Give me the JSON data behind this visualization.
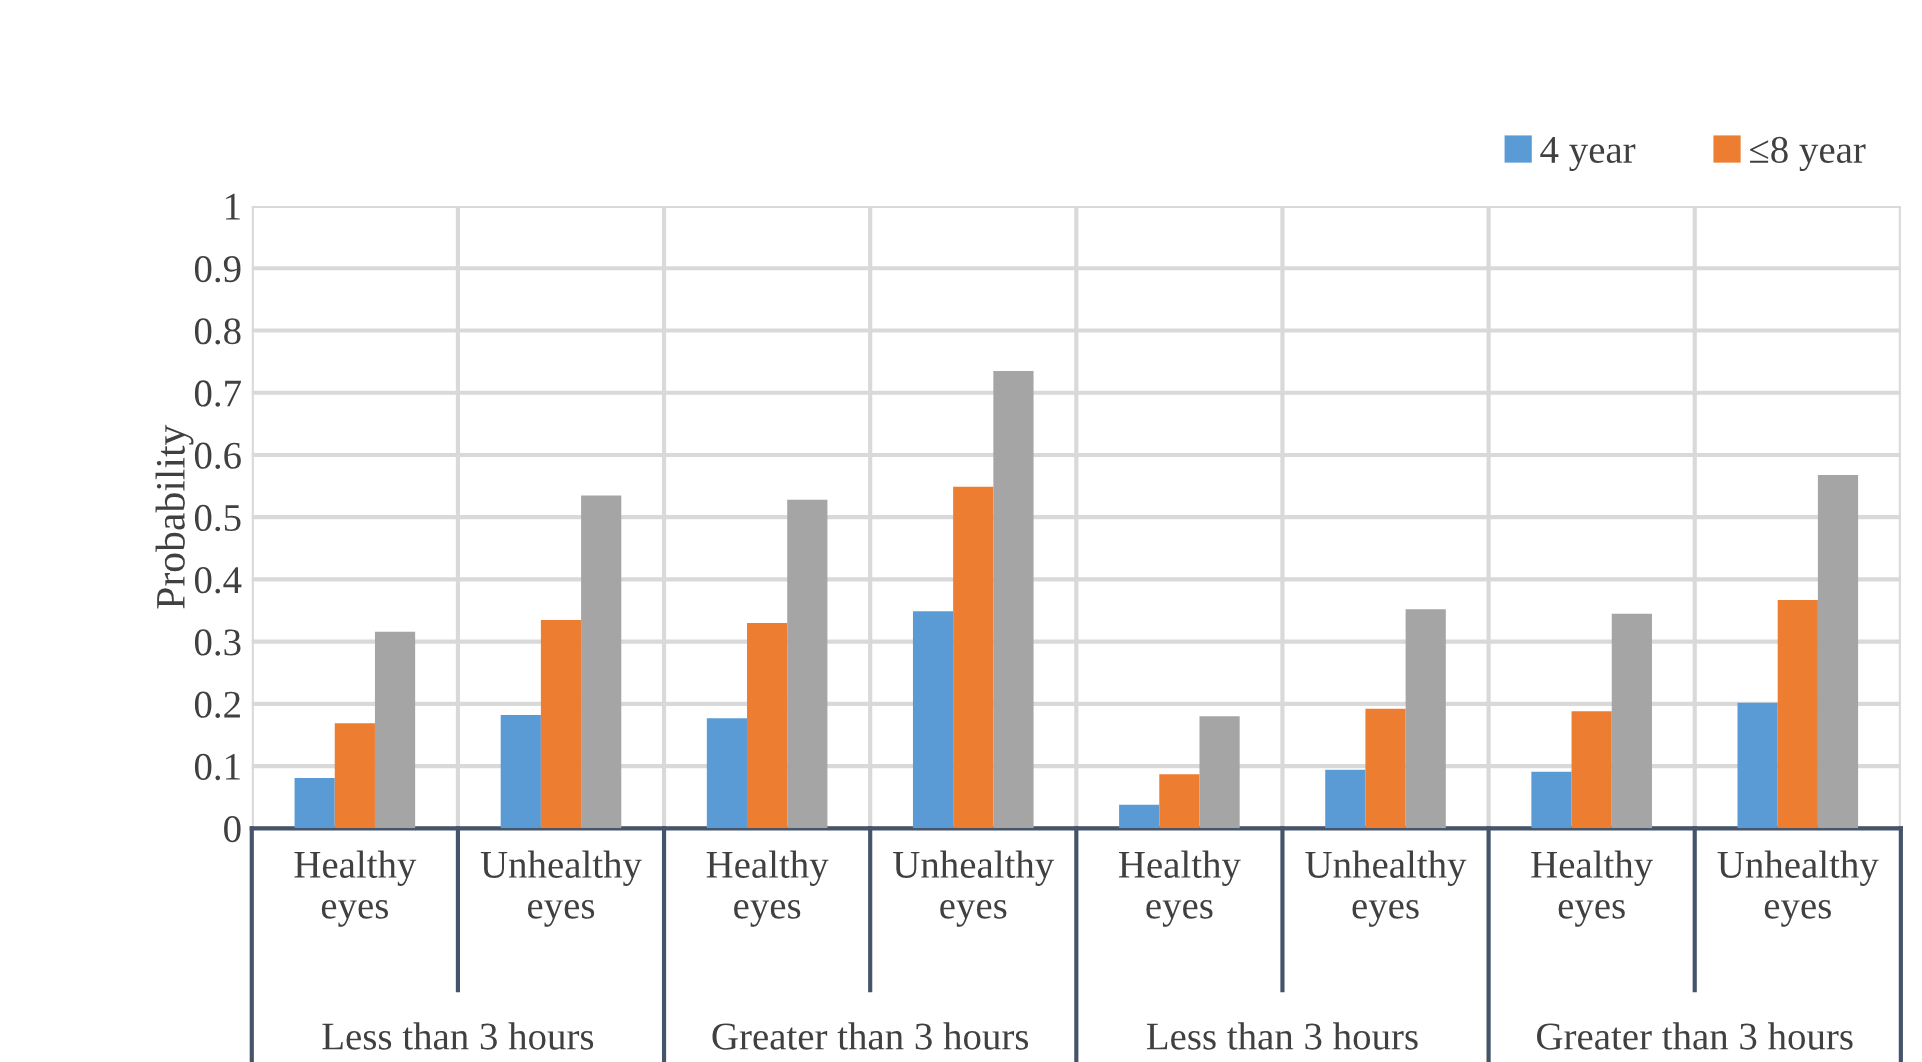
{
  "chart_data": {
    "type": "bar",
    "ylabel": "Probability",
    "categories": [
      "Healthy\neyes",
      "Unhealthy\neyes",
      "Healthy\neyes",
      "Unhealthy\neyes",
      "Healthy\neyes",
      "Unhealthy\neyes",
      "Healthy\neyes",
      "Unhealthy\neyes"
    ],
    "series": [
      {
        "name": "4 year",
        "color": "#5b9bd5",
        "values": [
          0.081,
          0.182,
          0.177,
          0.349,
          0.038,
          0.094,
          0.091,
          0.202
        ]
      },
      {
        "name": "≤8 year",
        "color": "#ed7d31",
        "values": [
          0.169,
          0.335,
          0.33,
          0.549,
          0.087,
          0.192,
          0.188,
          0.367
        ]
      },
      {
        "color": "#a5a5a5",
        "values": [
          0.316,
          0.535,
          0.528,
          0.735,
          0.18,
          0.352,
          0.345,
          0.568
        ]
      }
    ],
    "annotations": [
      "Less than 3 hours",
      "Greater than 3 hours",
      "Less than 3 hours",
      "Greater than 3 hours"
    ],
    "ylim": [
      0,
      1
    ],
    "yticks": [
      0,
      0.1,
      0.2,
      0.3,
      0.4,
      0.5,
      0.6,
      0.7,
      0.8,
      0.9,
      1
    ],
    "grid": true,
    "legend": "top right"
  }
}
